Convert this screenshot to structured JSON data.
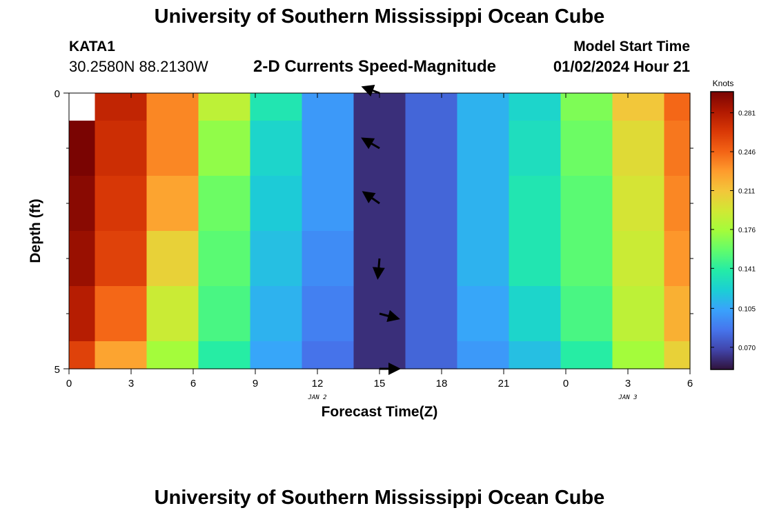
{
  "header": {
    "title": "University of Southern Mississippi Ocean Cube",
    "station_id": "KATA1",
    "coordinates": "30.2580N  88.2130W",
    "subtitle": "2-D Currents Speed-Magnitude",
    "model_start_label": "Model Start Time",
    "model_start_value": "01/02/2024 Hour 21"
  },
  "footer": {
    "title": "University of Southern Mississippi Ocean Cube"
  },
  "chart_data": {
    "type": "heatmap",
    "title": "2-D Currents Speed-Magnitude",
    "xlabel": "Forecast Time(Z)",
    "ylabel": "Depth (ft)",
    "x_tick_labels": [
      "0",
      "3",
      "6",
      "9",
      "12",
      "15",
      "18",
      "21",
      "0",
      "3",
      "6"
    ],
    "x_tick_hours": [
      0,
      3,
      6,
      9,
      12,
      15,
      18,
      21,
      24,
      27,
      30
    ],
    "x_range_hours": [
      0,
      30
    ],
    "date_labels": [
      {
        "label": "JAN 2",
        "hour": 12
      },
      {
        "label": "JAN 3",
        "hour": 27
      }
    ],
    "y_tick_labels": [
      "0",
      "5"
    ],
    "y_range_ft": [
      0,
      5
    ],
    "y_minor_ticks_ft": [
      1,
      2,
      3,
      4
    ],
    "column_hours": [
      0,
      2.5,
      5,
      7.5,
      10,
      12.5,
      15,
      17.5,
      20,
      22.5,
      25,
      27.5,
      30
    ],
    "row_depths_ft": [
      0,
      1,
      2,
      3,
      4,
      5
    ],
    "speed_knots": [
      [
        null,
        0.275,
        0.235,
        0.185,
        0.135,
        0.1,
        0.06,
        0.08,
        0.11,
        0.125,
        0.165,
        0.21,
        0.245
      ],
      [
        0.3,
        0.27,
        0.235,
        0.17,
        0.125,
        0.1,
        0.06,
        0.08,
        0.11,
        0.13,
        0.16,
        0.2,
        0.24
      ],
      [
        0.295,
        0.265,
        0.225,
        0.16,
        0.12,
        0.1,
        0.06,
        0.08,
        0.11,
        0.135,
        0.155,
        0.195,
        0.235
      ],
      [
        0.29,
        0.26,
        0.205,
        0.155,
        0.115,
        0.095,
        0.06,
        0.08,
        0.11,
        0.135,
        0.155,
        0.19,
        0.23
      ],
      [
        0.28,
        0.245,
        0.19,
        0.15,
        0.11,
        0.09,
        0.06,
        0.08,
        0.105,
        0.125,
        0.15,
        0.185,
        0.22
      ],
      [
        0.26,
        0.225,
        0.175,
        0.14,
        0.105,
        0.085,
        0.06,
        0.08,
        0.1,
        0.115,
        0.14,
        0.175,
        0.205
      ]
    ],
    "arrows": [
      {
        "hour": 15,
        "depth_ft": 0.0,
        "angle_deg": 200,
        "length": 0.9
      },
      {
        "hour": 15,
        "depth_ft": 1.0,
        "angle_deg": 210,
        "length": 1.0
      },
      {
        "hour": 15,
        "depth_ft": 2.0,
        "angle_deg": 215,
        "length": 1.0
      },
      {
        "hour": 15,
        "depth_ft": 3.0,
        "angle_deg": 95,
        "length": 1.0
      },
      {
        "hour": 15,
        "depth_ft": 4.0,
        "angle_deg": 15,
        "length": 1.0
      },
      {
        "hour": 15,
        "depth_ft": 5.0,
        "angle_deg": 0,
        "length": 1.0
      }
    ],
    "colorbar": {
      "label": "Knots",
      "range": [
        0.05,
        0.3
      ],
      "tick_labels": [
        "0.281",
        "0.246",
        "0.211",
        "0.176",
        "0.141",
        "0.105",
        "0.070"
      ],
      "tick_values": [
        0.281,
        0.246,
        0.211,
        0.176,
        0.141,
        0.105,
        0.07
      ],
      "colormap": [
        "#30123b",
        "#4145ab",
        "#4675ed",
        "#39a2fc",
        "#1bcfd4",
        "#24eca6",
        "#61fc6c",
        "#a4fc3b",
        "#d1e834",
        "#f3c63a",
        "#fe9b2d",
        "#f36315",
        "#d93806",
        "#b11901",
        "#7a0402"
      ]
    }
  }
}
